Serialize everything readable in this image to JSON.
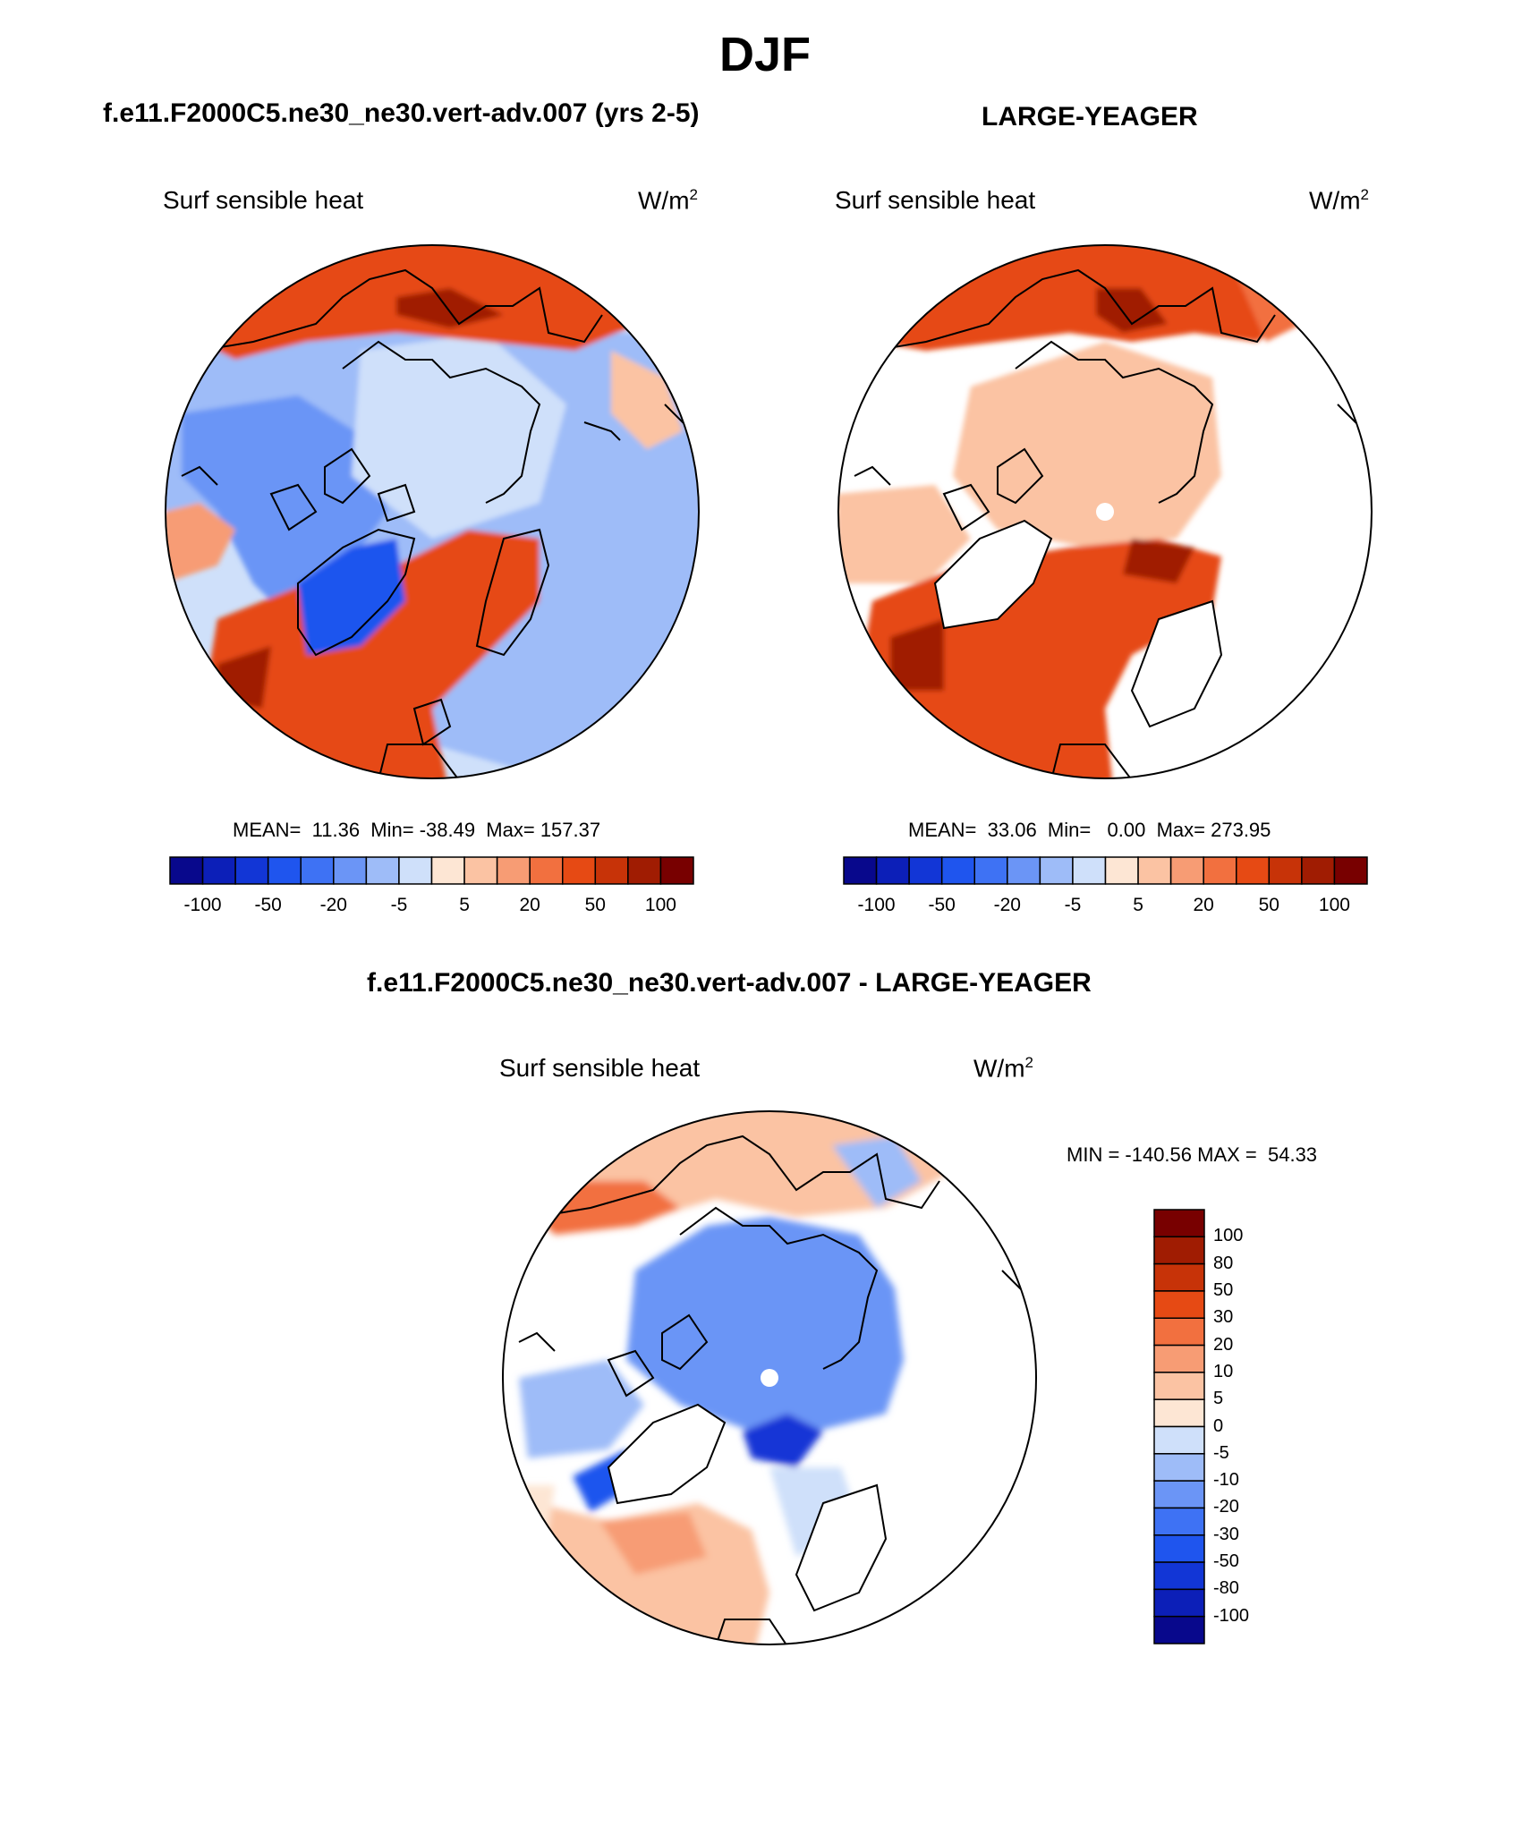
{
  "title": "DJF",
  "panels": {
    "p1": {
      "case": "f.e11.F2000C5.ne30_ne30.vert-adv.007 (yrs 2-5)",
      "variable": "Surf sensible heat",
      "unit": "W/m",
      "unit_sup": "2",
      "stats": "MEAN=  11.36  Min= -38.49  Max= 157.37"
    },
    "p2": {
      "case": "LARGE-YEAGER",
      "variable": "Surf sensible heat",
      "unit": "W/m",
      "unit_sup": "2",
      "stats": "MEAN=  33.06  Min=   0.00  Max= 273.95"
    },
    "p3": {
      "case": "f.e11.F2000C5.ne30_ne30.vert-adv.007 - LARGE-YEAGER",
      "variable": "Surf sensible heat",
      "unit": "W/m",
      "unit_sup": "2",
      "stats": "MIN = -140.56 MAX =  54.33"
    }
  },
  "colorbar_h": {
    "labels": [
      "-100",
      "-50",
      "-20",
      "-5",
      "5",
      "20",
      "50",
      "100"
    ],
    "colors": [
      "#08088c",
      "#0c1fb8",
      "#1236d6",
      "#1f55ee",
      "#3e72f4",
      "#6b95f6",
      "#9ebcf8",
      "#cfe0fa",
      "#fde6d4",
      "#fbc3a3",
      "#f79c74",
      "#f2703f",
      "#e64a14",
      "#c73308",
      "#a01c02",
      "#780000"
    ]
  },
  "colorbar_v": {
    "labels": [
      "100",
      "80",
      "50",
      "30",
      "20",
      "10",
      "5",
      "0",
      "-5",
      "-10",
      "-20",
      "-30",
      "-50",
      "-80",
      "-100"
    ],
    "colors": [
      "#780000",
      "#a01c02",
      "#c73308",
      "#e64a14",
      "#f2703f",
      "#f79c74",
      "#fbc3a3",
      "#fde6d4",
      "#cfe0fa",
      "#9ebcf8",
      "#6b95f6",
      "#3e72f4",
      "#1f55ee",
      "#1236d6",
      "#0c1fb8",
      "#08088c"
    ]
  },
  "chart_data": [
    {
      "type": "heatmap",
      "projection": "north polar stereographic",
      "title": "f.e11.F2000C5.ne30_ne30.vert-adv.007 (yrs 2-5)",
      "variable": "Surf sensible heat",
      "units": "W/m2",
      "mean": 11.36,
      "min": -38.49,
      "max": 157.37,
      "contour_levels": [
        -100,
        -80,
        -50,
        -30,
        -20,
        -10,
        -5,
        0,
        5,
        10,
        20,
        30,
        50,
        80,
        100
      ]
    },
    {
      "type": "heatmap",
      "projection": "north polar stereographic",
      "title": "LARGE-YEAGER",
      "variable": "Surf sensible heat",
      "units": "W/m2",
      "mean": 33.06,
      "min": 0.0,
      "max": 273.95,
      "contour_levels": [
        -100,
        -80,
        -50,
        -30,
        -20,
        -10,
        -5,
        0,
        5,
        10,
        20,
        30,
        50,
        80,
        100
      ]
    },
    {
      "type": "heatmap",
      "projection": "north polar stereographic",
      "title": "f.e11.F2000C5.ne30_ne30.vert-adv.007 - LARGE-YEAGER",
      "variable": "Surf sensible heat",
      "units": "W/m2",
      "min": -140.56,
      "max": 54.33,
      "contour_levels": [
        -100,
        -80,
        -50,
        -30,
        -20,
        -10,
        -5,
        0,
        5,
        10,
        20,
        30,
        50,
        80,
        100
      ]
    }
  ]
}
